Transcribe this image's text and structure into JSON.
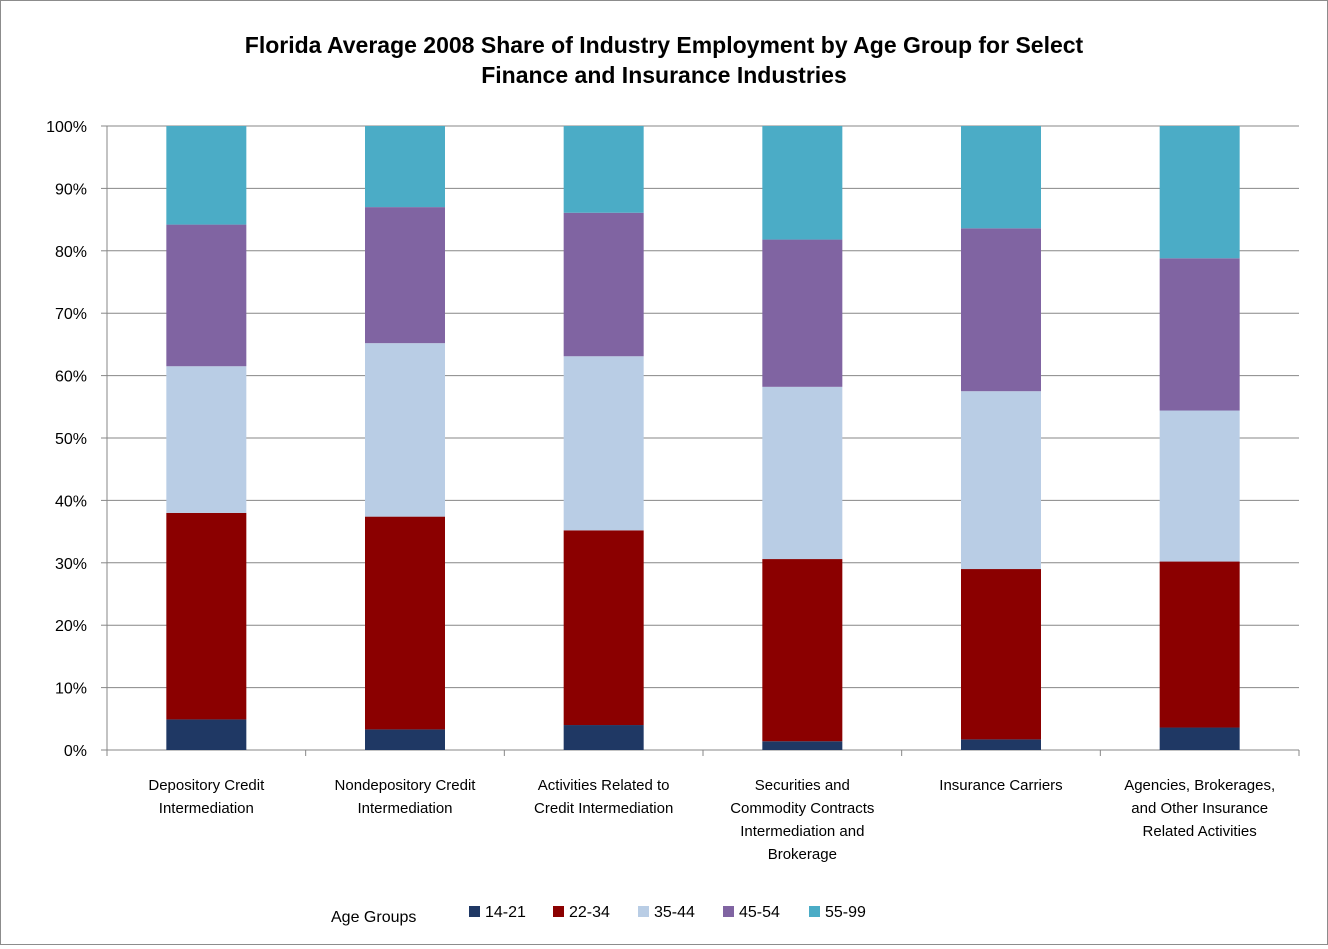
{
  "chart_data": {
    "type": "bar",
    "stacked": true,
    "percent": true,
    "title": [
      "Florida Average 2008 Share of Industry Employment by Age Group for Select",
      "Finance and Insurance Industries"
    ],
    "categories": [
      [
        "Depository Credit",
        "Intermediation"
      ],
      [
        "Nondepository Credit",
        "Intermediation"
      ],
      [
        "Activities Related to",
        "Credit Intermediation"
      ],
      [
        "Securities and",
        "Commodity Contracts",
        "Intermediation and",
        "Brokerage"
      ],
      [
        "Insurance Carriers"
      ],
      [
        "Agencies, Brokerages,",
        "and Other Insurance",
        "Related Activities"
      ]
    ],
    "series": [
      {
        "name": "14-21",
        "color": "#1f3864",
        "values": [
          4.9,
          3.3,
          4.0,
          1.4,
          1.7,
          3.6
        ]
      },
      {
        "name": "22-34",
        "color": "#8b0000",
        "values": [
          33.1,
          34.1,
          31.2,
          29.2,
          27.3,
          26.6
        ]
      },
      {
        "name": "35-44",
        "color": "#b9cde5",
        "values": [
          23.5,
          27.8,
          27.9,
          27.6,
          28.5,
          24.2
        ]
      },
      {
        "name": "45-54",
        "color": "#8064a2",
        "values": [
          22.7,
          21.8,
          23.0,
          23.6,
          26.1,
          24.4
        ]
      },
      {
        "name": "55-99",
        "color": "#4bacc6",
        "values": [
          15.8,
          13.0,
          13.9,
          18.2,
          16.4,
          21.2
        ]
      }
    ],
    "ylim": [
      0,
      100
    ],
    "yticks": [
      "0%",
      "10%",
      "20%",
      "30%",
      "40%",
      "50%",
      "60%",
      "70%",
      "80%",
      "90%",
      "100%"
    ],
    "grid": true,
    "legend": {
      "title": "Age Groups",
      "position": "bottom"
    }
  }
}
